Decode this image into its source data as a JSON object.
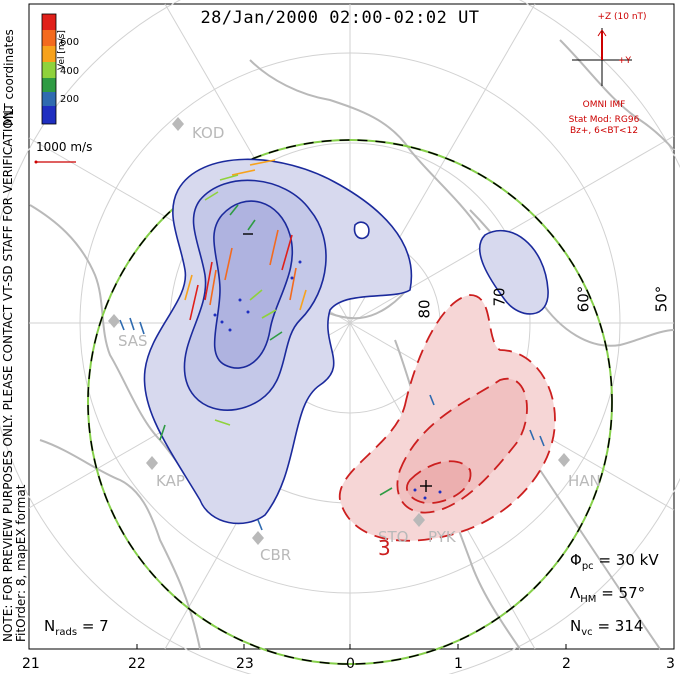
{
  "title": "28/Jan/2000 02:00-02:02 UT",
  "side_note": [
    "NOTE: FOR PREVIEW PURPOSES ONLY. PLEASE CONTACT VT-SD STAFF FOR VERIFICATION.",
    "FitOrder: 8, mapEX format"
  ],
  "coords_label": "MLT coordinates",
  "colorbar": {
    "label": "Vel [m/s]",
    "ticks": [
      "600",
      "400",
      "200"
    ],
    "colors": [
      "#e0201a",
      "#f36a1e",
      "#f7a21c",
      "#8fd23c",
      "#2e9b43",
      "#2f6bb0",
      "#1f2fc0"
    ]
  },
  "scale_label": "1000 m/s",
  "mlt_ticks": [
    "21",
    "22",
    "23",
    "0",
    "1",
    "2",
    "3"
  ],
  "lat_labels": [
    "80",
    "70",
    "60°",
    "50°"
  ],
  "stations": [
    "KOD",
    "SAS",
    "KAP",
    "CBR",
    "STO",
    "PYK",
    "HAN"
  ],
  "contour_label": "3",
  "imf": {
    "axis_z": "+Z (10 nT)",
    "axis_y": "+Y",
    "source": "OMNI IMF",
    "model": "Stat Mod: RG96",
    "condition": "Bz+, 6<BT<12"
  },
  "stats": {
    "phi_pc": {
      "symbol": "Φ",
      "sub": "pc",
      "value": "= 30 kV"
    },
    "lambda_hm": {
      "symbol": "Λ",
      "sub": "HM",
      "value": "= 57°"
    },
    "n_vc": {
      "symbol": "N",
      "sub": "vc",
      "value": "= 314"
    },
    "n_rads": {
      "symbol": "N",
      "sub": "rads",
      "value": "= 7"
    }
  },
  "colors": {
    "negative_cell": "#1b2a9c",
    "negative_fill": "#c9cce6",
    "positive_cell": "#cc1f1f",
    "positive_fill": "#f6d2d2",
    "coast": "#b9b9b9",
    "grid": "#cfcfcf",
    "hm_boundary": "#86d04a"
  }
}
